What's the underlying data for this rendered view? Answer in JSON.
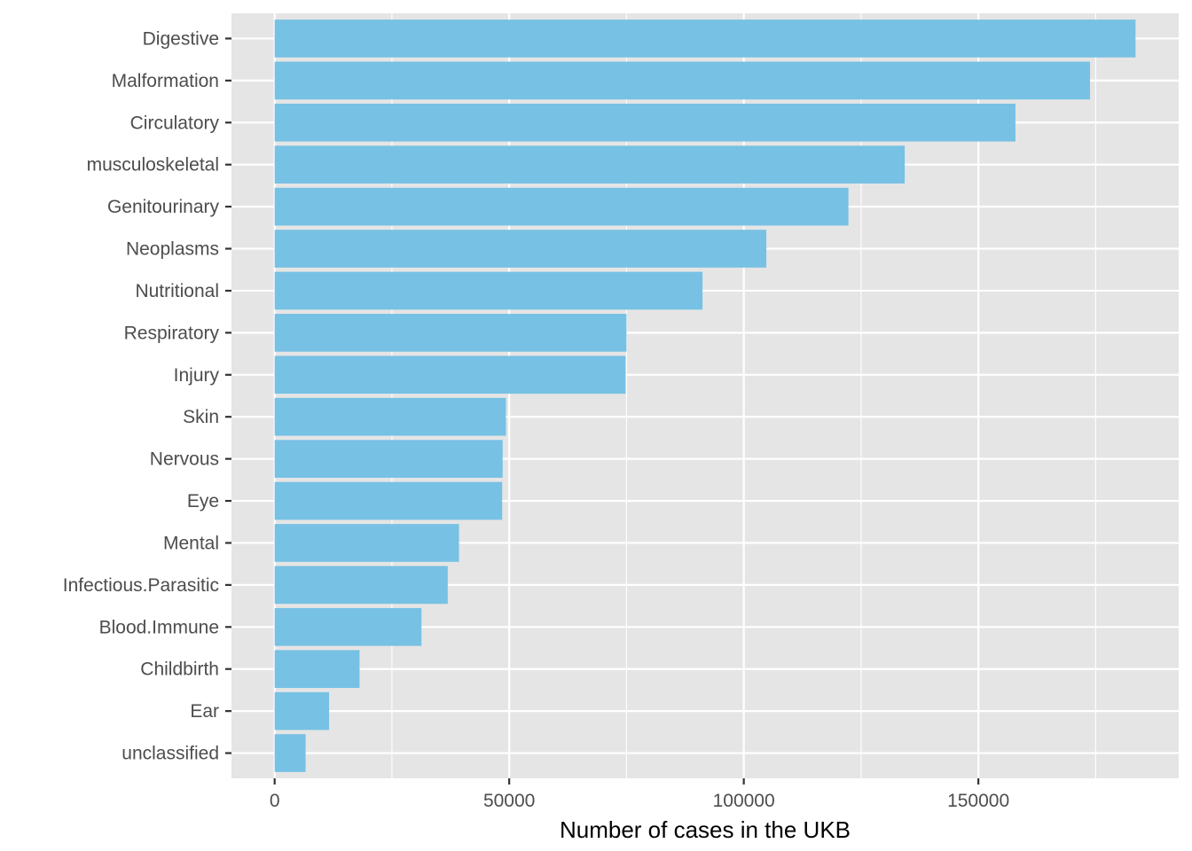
{
  "chart_data": {
    "type": "bar",
    "orientation": "horizontal",
    "title": "",
    "xlabel": "Number of cases in the UKB",
    "ylabel": "",
    "categories": [
      "Digestive",
      "Malformation",
      "Circulatory",
      "musculoskeletal",
      "Genitourinary",
      "Neoplasms",
      "Nutritional",
      "Respiratory",
      "Injury",
      "Skin",
      "Nervous",
      "Eye",
      "Mental",
      "Infectious.Parasitic",
      "Blood.Immune",
      "Childbirth",
      "Ear",
      "unclassified"
    ],
    "values": [
      183500,
      173800,
      157900,
      134300,
      122300,
      104800,
      91200,
      75000,
      74800,
      49300,
      48600,
      48500,
      39300,
      36900,
      31300,
      18100,
      11600,
      6600
    ],
    "xlim": [
      -9200,
      192700
    ],
    "xticks": [
      0,
      50000,
      100000,
      150000
    ],
    "xtick_labels": [
      "0",
      "50000",
      "100000",
      "150000"
    ],
    "bar_color": "#77c1e4",
    "panel_background": "#e5e5e5",
    "grid_color": "#ffffff",
    "grid": true,
    "legend": "none"
  }
}
